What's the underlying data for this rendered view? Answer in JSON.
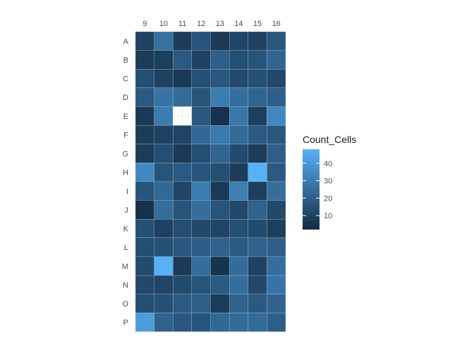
{
  "chart_data": {
    "type": "heatmap",
    "x_categories": [
      "9",
      "10",
      "11",
      "12",
      "13",
      "14",
      "15",
      "16"
    ],
    "y_categories": [
      "A",
      "B",
      "C",
      "D",
      "E",
      "F",
      "G",
      "H",
      "I",
      "J",
      "K",
      "L",
      "M",
      "N",
      "O",
      "P"
    ],
    "values": [
      [
        10,
        26,
        8,
        16,
        7,
        11,
        10,
        17
      ],
      [
        8,
        9,
        18,
        10,
        20,
        14,
        16,
        22
      ],
      [
        14,
        10,
        7,
        15,
        17,
        13,
        15,
        12
      ],
      [
        18,
        27,
        24,
        16,
        30,
        25,
        22,
        20
      ],
      [
        7,
        30,
        null,
        17,
        4,
        28,
        9,
        34
      ],
      [
        8,
        10,
        11,
        23,
        29,
        24,
        18,
        17
      ],
      [
        8,
        14,
        7,
        14,
        22,
        13,
        8,
        20
      ],
      [
        34,
        16,
        18,
        16,
        14,
        8,
        48,
        18
      ],
      [
        16,
        23,
        11,
        30,
        7,
        31,
        9,
        25
      ],
      [
        4,
        25,
        16,
        25,
        16,
        12,
        21,
        12
      ],
      [
        15,
        10,
        14,
        12,
        11,
        15,
        13,
        9
      ],
      [
        14,
        15,
        17,
        19,
        21,
        18,
        21,
        20
      ],
      [
        13,
        48,
        7,
        25,
        5,
        24,
        10,
        25
      ],
      [
        12,
        11,
        13,
        16,
        18,
        25,
        12,
        27
      ],
      [
        14,
        15,
        18,
        20,
        8,
        21,
        18,
        21
      ],
      [
        41,
        21,
        17,
        16,
        23,
        24,
        24,
        20
      ]
    ],
    "color_low": "#132B43",
    "color_high": "#56B1F7",
    "value_range": [
      2,
      48
    ],
    "legend": {
      "title": "Count_Cells",
      "position": "right",
      "breaks": [
        10,
        20,
        30,
        40
      ],
      "labels": [
        "10",
        "20",
        "30",
        "40"
      ]
    },
    "x_axis_position": "top",
    "grid": false,
    "title": "",
    "xlabel": "",
    "ylabel": ""
  }
}
